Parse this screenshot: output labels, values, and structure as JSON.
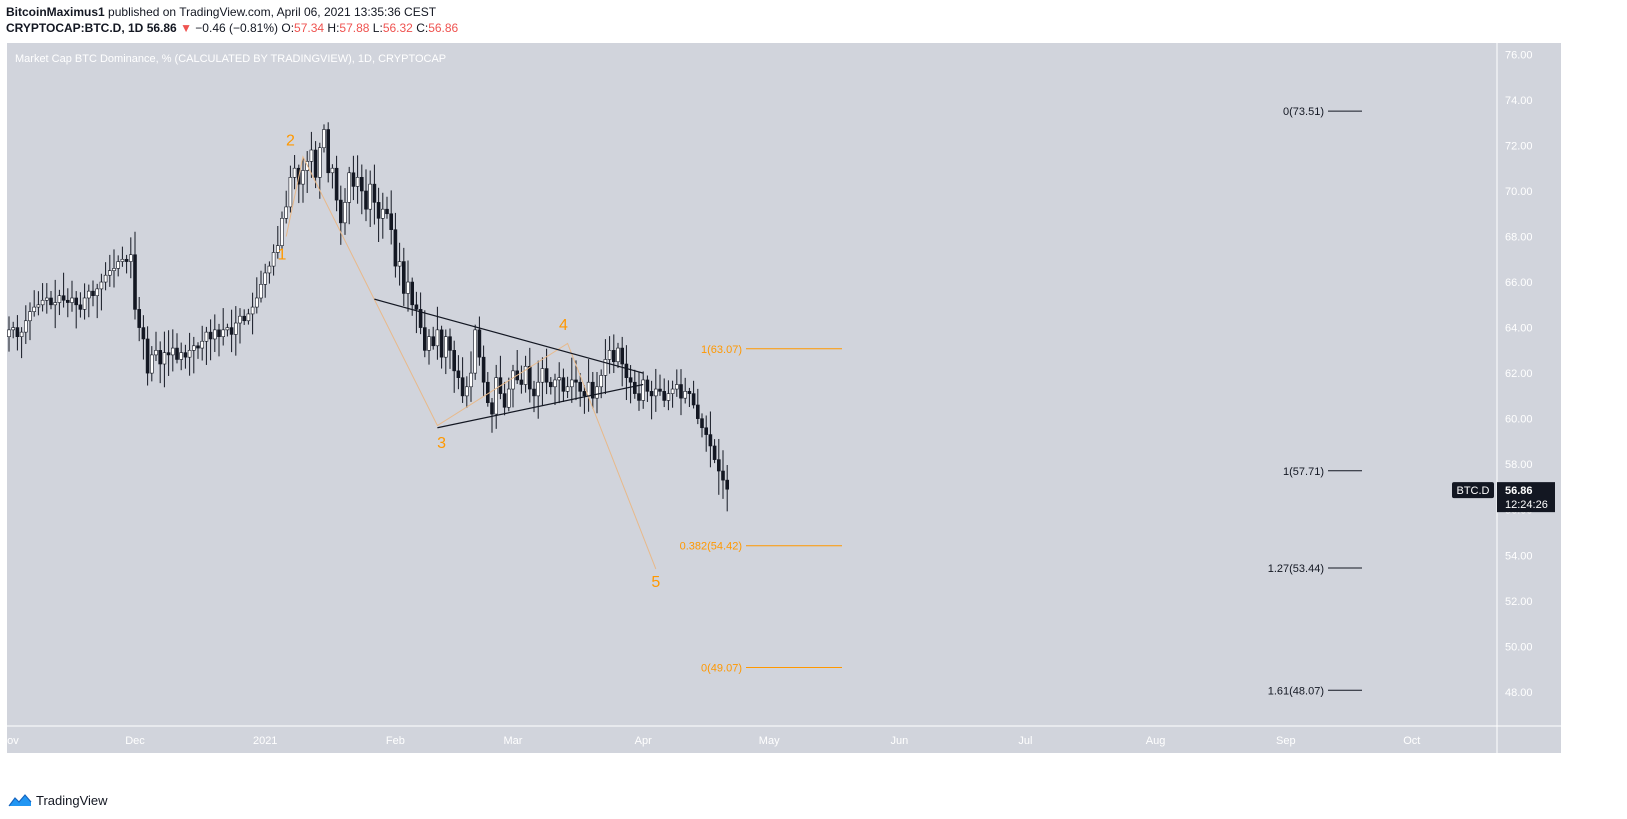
{
  "header": {
    "author": "BitcoinMaximus1",
    "published": "published on TradingView.com, April 06, 2021 13:35:36 CEST",
    "symbol": "CRYPTOCAP:BTC.D, 1D",
    "last": "56.86",
    "change_arrow": "▼",
    "change": "−0.46 (−0.81%)",
    "o_label": "O:",
    "o": "57.34",
    "h_label": "H:",
    "h": "57.88",
    "l_label": "L:",
    "l": "56.32",
    "c_label": "C:",
    "c": "56.86"
  },
  "footer": {
    "brand": "TradingView",
    "logo_icon": "tradingview-logo-icon"
  },
  "chart_data": {
    "type": "candlestick",
    "title": "Market Cap BTC Dominance, % (CALCULATED BY TRADINGVIEW), 1D, CRYPTOCAP",
    "ylim": [
      46.5,
      76.5
    ],
    "y_ticks": [
      "48.00",
      "50.00",
      "52.00",
      "54.00",
      "56.00",
      "58.00",
      "60.00",
      "62.00",
      "64.00",
      "66.00",
      "68.00",
      "70.00",
      "72.00",
      "74.00",
      "76.00"
    ],
    "x_ticks": [
      {
        "label": "Nov",
        "date": "2020-11-01"
      },
      {
        "label": "Dec",
        "date": "2020-12-01"
      },
      {
        "label": "2021",
        "date": "2021-01-01"
      },
      {
        "label": "Feb",
        "date": "2021-02-01"
      },
      {
        "label": "Mar",
        "date": "2021-03-01"
      },
      {
        "label": "Apr",
        "date": "2021-04-01"
      },
      {
        "label": "May",
        "date": "2021-05-01"
      },
      {
        "label": "Jun",
        "date": "2021-06-01"
      },
      {
        "label": "Jul",
        "date": "2021-07-01"
      },
      {
        "label": "Aug",
        "date": "2021-08-01"
      },
      {
        "label": "Sep",
        "date": "2021-09-01"
      },
      {
        "label": "Oct",
        "date": "2021-10-01"
      }
    ],
    "series": [
      {
        "start_date": "2020-11-01",
        "close": [
          63.9,
          64.0,
          63.6,
          63.8,
          64.3,
          64.7,
          64.9,
          65.0,
          65.2,
          65.3,
          65.0,
          65.1,
          65.4,
          65.2,
          65.1,
          65.3,
          65.0,
          64.8,
          65.3,
          65.6,
          65.4,
          65.7,
          66.0,
          66.3,
          66.5,
          66.6,
          66.9,
          67.0,
          66.9,
          67.2,
          64.8,
          64.0,
          63.5,
          62.0,
          62.8,
          63.0,
          62.4,
          62.9,
          62.8,
          63.1,
          62.6,
          62.9,
          62.7,
          63.0,
          63.2,
          63.1,
          63.4,
          63.8,
          63.5,
          63.9,
          63.6,
          63.9,
          64.0,
          63.7,
          64.2,
          64.5,
          64.3,
          64.6,
          64.9,
          65.3,
          65.9,
          66.4,
          66.7,
          67.3,
          67.6,
          68.8,
          69.3,
          70.6,
          71.0,
          70.3,
          70.9,
          71.3,
          71.8,
          70.6,
          71.9,
          72.7,
          70.8,
          71.0,
          69.6,
          68.6,
          69.5,
          70.8,
          70.2,
          70.6,
          70.0,
          69.2,
          70.3,
          69.5,
          68.8,
          69.2,
          69.0,
          68.3,
          66.7,
          66.9,
          65.5,
          66.0,
          65.0,
          64.8,
          64.0,
          63.0,
          63.6,
          63.2,
          63.9,
          62.7,
          63.6,
          63.0,
          62.1,
          61.8,
          61.0,
          61.4,
          62.0,
          63.9,
          62.7,
          61.6,
          60.7,
          60.2,
          61.8,
          61.1,
          60.5,
          61.3,
          62.1,
          61.7,
          61.5,
          62.3,
          61.3,
          61.0,
          61.6,
          62.2,
          61.6,
          61.4,
          61.7,
          61.8,
          61.2,
          61.4,
          61.7,
          61.6,
          61.2,
          61.0,
          61.6,
          60.9,
          61.4,
          61.9,
          62.6,
          63.0,
          62.5,
          63.1,
          62.4,
          61.8,
          61.6,
          61.1,
          60.8,
          61.7,
          61.2,
          61.0,
          61.3,
          61.2,
          60.8,
          61.1,
          61.3,
          61.5,
          60.9,
          61.2,
          61.1,
          60.6,
          60.0,
          59.6,
          59.3,
          58.8,
          58.2,
          57.7,
          57.3,
          56.9
        ]
      }
    ],
    "trendlines": [
      {
        "name": "triangle-upper",
        "from": [
          "2021-01-27",
          65.25
        ],
        "to": [
          "2021-04-01",
          62.0
        ]
      },
      {
        "name": "triangle-lower",
        "from": [
          "2021-02-11",
          59.6
        ],
        "to": [
          "2021-04-01",
          61.5
        ]
      }
    ],
    "wave_labels": [
      {
        "label": "1",
        "date": "2021-01-05",
        "value": 67.0
      },
      {
        "label": "2",
        "date": "2021-01-07",
        "value": 72.0
      },
      {
        "label": "3",
        "date": "2021-02-12",
        "value": 58.7
      },
      {
        "label": "4",
        "date": "2021-03-13",
        "value": 63.9
      },
      {
        "label": "5",
        "date": "2021-04-04",
        "value": 52.6
      }
    ],
    "wave_path": [
      [
        "2021-01-06",
        68.0
      ],
      [
        "2021-01-10",
        71.5
      ],
      [
        "2021-02-11",
        59.7
      ],
      [
        "2021-03-14",
        63.3
      ],
      [
        "2021-04-04",
        53.4
      ]
    ],
    "fib_orange": [
      {
        "label": "1(63.07)",
        "value": 63.07
      },
      {
        "label": "0.382(54.42)",
        "value": 54.42
      },
      {
        "label": "0(49.07)",
        "value": 49.07
      }
    ],
    "fib_black": [
      {
        "label": "0(73.51)",
        "value": 73.51
      },
      {
        "label": "1(57.71)",
        "value": 57.71
      },
      {
        "label": "1.27(53.44)",
        "value": 53.44
      },
      {
        "label": "1.61(48.07)",
        "value": 48.07
      }
    ],
    "price_badge": {
      "symbol": "BTC.D",
      "price": "56.86",
      "countdown": "12:24:26",
      "value": 56.86
    },
    "colors": {
      "background": "#d1d4dc",
      "orange": "#ff9800",
      "up": "#ffffff",
      "down": "#131722",
      "badge": "#131722"
    }
  }
}
